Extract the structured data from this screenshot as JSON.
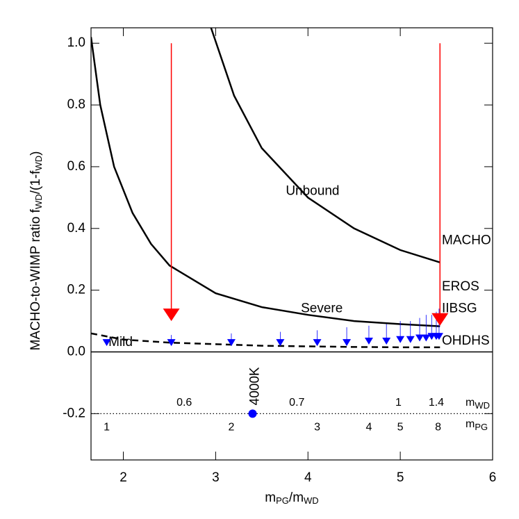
{
  "chart_data": {
    "type": "line",
    "xlabel": [
      "m",
      "PG",
      "/m",
      "WD"
    ],
    "ylabel": [
      "MACHO-to-WIMP ratio f",
      "WD",
      "/(1-f",
      "WD",
      ")"
    ],
    "xlim": [
      1.65,
      6
    ],
    "ylim": [
      -0.35,
      1.05
    ],
    "xticks": [
      2,
      3,
      4,
      5,
      6
    ],
    "yticks": [
      {
        "value": -0.2,
        "label": "-0.2"
      },
      {
        "value": 0,
        "label": "0.0"
      },
      0.2,
      0.4,
      0.6,
      0.8,
      {
        "value": 1,
        "label": "1.0"
      }
    ],
    "series": [
      {
        "name": "Unbound",
        "color": "#000000",
        "dashed": false,
        "x": [
          2.95,
          3.2,
          3.5,
          4,
          4.5,
          5,
          5.43
        ],
        "values": [
          1.05,
          0.83,
          0.66,
          0.5,
          0.4,
          0.33,
          0.29
        ]
      },
      {
        "name": "Severe",
        "color": "#000000",
        "dashed": false,
        "x": [
          1.65,
          1.75,
          1.9,
          2.1,
          2.3,
          2.5,
          3,
          3.5,
          4,
          4.5,
          5,
          5.43
        ],
        "values": [
          1.02,
          0.8,
          0.6,
          0.45,
          0.35,
          0.28,
          0.19,
          0.145,
          0.12,
          0.1,
          0.09,
          0.083
        ]
      },
      {
        "name": "Mild",
        "color": "#000000",
        "dashed": true,
        "x": [
          1.65,
          2,
          2.5,
          3,
          3.5,
          4,
          4.5,
          5,
          5.43
        ],
        "values": [
          0.06,
          0.04,
          0.03,
          0.025,
          0.02,
          0.018,
          0.016,
          0.015,
          0.015
        ]
      }
    ],
    "limits": {
      "color": "#0000ff",
      "x": [
        1.82,
        2.52,
        3.17,
        3.7,
        4.1,
        4.42,
        4.66,
        4.85,
        5.0,
        5.11,
        5.21,
        5.28,
        5.34,
        5.39,
        5.42
      ],
      "values": [
        0.03,
        0.03,
        0.03,
        0.03,
        0.03,
        0.03,
        0.035,
        0.035,
        0.04,
        0.04,
        0.045,
        0.045,
        0.05,
        0.05,
        0.05
      ],
      "upper": [
        0.03,
        0.055,
        0.06,
        0.065,
        0.07,
        0.08,
        0.085,
        0.09,
        0.1,
        0.1,
        0.11,
        0.12,
        0.12,
        0.13,
        0.14
      ]
    },
    "red_arrows": {
      "color": "#ff0000",
      "x": [
        2.52,
        5.43
      ],
      "from": [
        1.0,
        1.0
      ],
      "to": [
        0.1,
        0.085
      ]
    },
    "hlines": [
      0,
      -0.2
    ],
    "point": {
      "x": 3.4,
      "y": -0.2,
      "label": "4000K",
      "color": "#0000ff"
    },
    "survey_labels": [
      {
        "text": "MACHO",
        "color": "#ff0000"
      },
      {
        "text": "EROS",
        "color": "#ff0000"
      },
      {
        "text": "IIBSG",
        "color": "#0000ff"
      },
      {
        "text": "OHDHS",
        "color": "#0000ff"
      }
    ],
    "wd_row": {
      "labels": [
        "0.6",
        "0.7",
        "1",
        "1.4"
      ],
      "name": [
        "m",
        "WD"
      ]
    },
    "pg_row": {
      "labels": [
        "1",
        "2",
        "3",
        "4",
        "5",
        "8"
      ],
      "name": [
        "m",
        "PG"
      ]
    }
  }
}
